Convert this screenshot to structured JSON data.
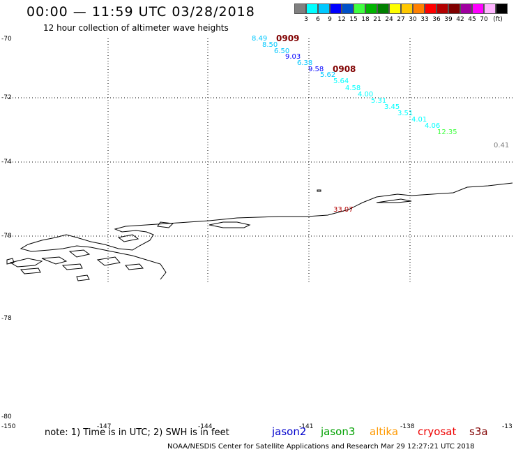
{
  "title": "00:00 — 11:59 UTC 03/28/2018",
  "subtitle": "12 hour collection of altimeter wave heights",
  "colorbar": {
    "colors": [
      "#808080",
      "#00ffff",
      "#00c8ff",
      "#0000ff",
      "#0050c8",
      "#40ff40",
      "#00b400",
      "#008000",
      "#ffff00",
      "#ffc800",
      "#ff8000",
      "#ff0000",
      "#b40000",
      "#800000",
      "#a000a0",
      "#ff00ff",
      "#ffb4ff",
      "#000000"
    ],
    "labels": [
      "3",
      "6",
      "9",
      "12",
      "15",
      "18",
      "21",
      "24",
      "27",
      "30",
      "33",
      "36",
      "39",
      "42",
      "45",
      "70",
      "(ft)"
    ]
  },
  "lat_labels": [
    "-70",
    "-72",
    "-74",
    "-78",
    "-78",
    "-80"
  ],
  "lon_labels": [
    "-150",
    "-147",
    "-144",
    "-141",
    "-138",
    "-13"
  ],
  "wave_labels": [
    "8.49",
    "8.50",
    "6.50",
    "9.03",
    "6.38",
    "9.58",
    "5.62",
    "5.64",
    "4.58",
    "4.00",
    "5.31",
    "3.45",
    "3.51",
    "4.01",
    "4.06",
    "12.35",
    "0.41",
    "33.07"
  ],
  "track_labels": [
    "0909",
    "0908"
  ],
  "note": "note: 1) Time is in UTC; 2) SWH is in feet",
  "missions": [
    {
      "name": "jason2",
      "color": "#0000cc"
    },
    {
      "name": "jason3",
      "color": "#00a000"
    },
    {
      "name": "altika",
      "color": "#ff9900"
    },
    {
      "name": "cryosat",
      "color": "#ee0000"
    },
    {
      "name": "s3a",
      "color": "#800000"
    }
  ],
  "credit": "NOAA/NESDIS Center for Satellite Applications and Research   Mar 29 12:27:21 UTC 2018"
}
